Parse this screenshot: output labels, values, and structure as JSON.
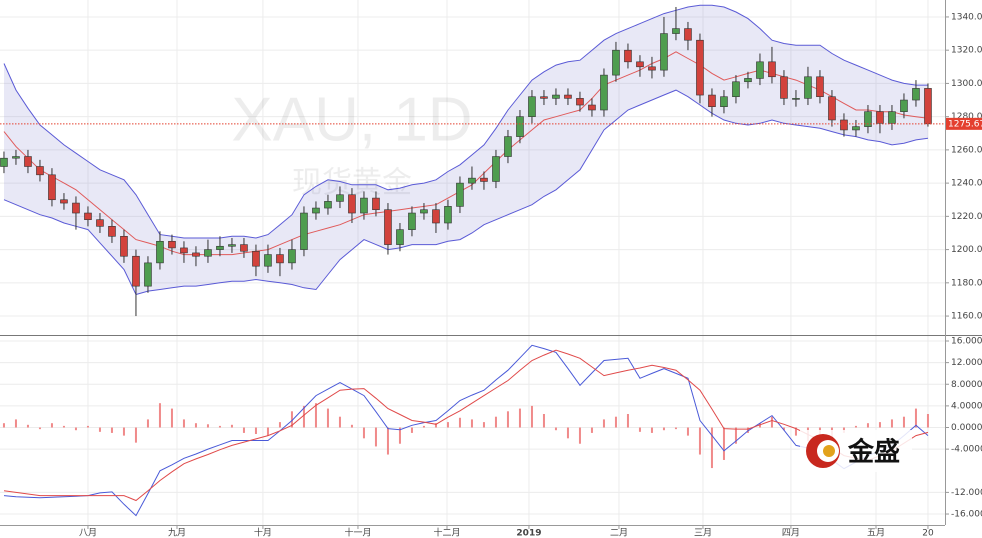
{
  "watermark": {
    "symbol": "XAU, 1D",
    "name": "现货黄金"
  },
  "logo": "金盛",
  "chart_data": [
    {
      "type": "candlestick",
      "xlim": [
        -0.33,
        78.42
      ],
      "ylim": [
        1148.6,
        1350.2
      ],
      "yticks": [
        {
          "value": 1160,
          "label": "1160.0"
        },
        {
          "value": 1180,
          "label": "1180.0"
        },
        {
          "value": 1200,
          "label": "1200.0"
        },
        {
          "value": 1220,
          "label": "1220.0"
        },
        {
          "value": 1240,
          "label": "1240.0"
        },
        {
          "value": 1260,
          "label": "1260.0"
        },
        {
          "value": 1280,
          "label": "1280.0"
        },
        {
          "value": 1300,
          "label": "1300.0"
        },
        {
          "value": 1320,
          "label": "1320.0"
        },
        {
          "value": 1340,
          "label": "1340.0"
        }
      ],
      "grid": true,
      "up_color": "#4f9d4f",
      "down_color": "#d2423c",
      "open": [
        1250,
        1255,
        1256,
        1250,
        1245,
        1230,
        1228,
        1222,
        1218,
        1214,
        1208,
        1196,
        1178,
        1192,
        1205,
        1201,
        1198,
        1196,
        1200,
        1202,
        1203,
        1199,
        1190,
        1197,
        1192,
        1200,
        1222,
        1225,
        1229,
        1233,
        1222,
        1231,
        1224,
        1203,
        1212,
        1222,
        1224,
        1216,
        1226,
        1240,
        1243,
        1241,
        1256,
        1268,
        1280,
        1292,
        1291,
        1293,
        1291,
        1287,
        1284,
        1305,
        1320,
        1313,
        1310,
        1308,
        1330,
        1333,
        1326,
        1293,
        1286,
        1292,
        1301,
        1303,
        1313,
        1304,
        1291,
        1291,
        1304,
        1292,
        1278,
        1272,
        1274,
        1283,
        1276,
        1283,
        1290,
        1297
      ],
      "high": [
        1259,
        1260,
        1260,
        1254,
        1249,
        1234,
        1232,
        1226,
        1222,
        1218,
        1212,
        1200,
        1196,
        1211,
        1209,
        1205,
        1202,
        1206,
        1208,
        1207,
        1207,
        1203,
        1203,
        1201,
        1206,
        1226,
        1229,
        1233,
        1238,
        1237,
        1235,
        1235,
        1228,
        1216,
        1226,
        1228,
        1228,
        1230,
        1244,
        1250,
        1247,
        1260,
        1272,
        1284,
        1296,
        1296,
        1297,
        1297,
        1295,
        1291,
        1309,
        1325,
        1324,
        1317,
        1316,
        1340,
        1346,
        1337,
        1330,
        1297,
        1296,
        1305,
        1307,
        1318,
        1322,
        1308,
        1296,
        1310,
        1308,
        1296,
        1282,
        1278,
        1287,
        1287,
        1287,
        1294,
        1302,
        1300
      ],
      "low": [
        1246,
        1251,
        1246,
        1241,
        1226,
        1224,
        1212,
        1214,
        1210,
        1204,
        1192,
        1160,
        1174,
        1188,
        1197,
        1192,
        1190,
        1192,
        1196,
        1198,
        1195,
        1184,
        1186,
        1184,
        1188,
        1196,
        1218,
        1221,
        1225,
        1216,
        1218,
        1220,
        1197,
        1199,
        1208,
        1218,
        1210,
        1212,
        1222,
        1236,
        1236,
        1237,
        1252,
        1264,
        1276,
        1287,
        1287,
        1287,
        1283,
        1280,
        1280,
        1301,
        1309,
        1304,
        1303,
        1304,
        1326,
        1320,
        1288,
        1280,
        1282,
        1288,
        1297,
        1299,
        1300,
        1287,
        1286,
        1287,
        1288,
        1274,
        1268,
        1268,
        1270,
        1270,
        1272,
        1279,
        1286,
        1274
      ],
      "close": [
        1255,
        1256,
        1250,
        1245,
        1230,
        1228,
        1222,
        1218,
        1214,
        1208,
        1196,
        1178,
        1192,
        1205,
        1201,
        1198,
        1196,
        1200,
        1202,
        1203,
        1199,
        1190,
        1197,
        1192,
        1200,
        1222,
        1225,
        1229,
        1233,
        1222,
        1231,
        1224,
        1203,
        1212,
        1222,
        1224,
        1216,
        1226,
        1240,
        1243,
        1241,
        1256,
        1268,
        1280,
        1292,
        1291,
        1293,
        1291,
        1287,
        1284,
        1305,
        1320,
        1313,
        1310,
        1308,
        1330,
        1333,
        1326,
        1293,
        1286,
        1292,
        1301,
        1303,
        1313,
        1304,
        1291,
        1291,
        1304,
        1292,
        1278,
        1272,
        1274,
        1283,
        1276,
        1283,
        1290,
        1297,
        1275.67
      ],
      "bands": {
        "color": "#5a5ad6",
        "middle_color": "#e05a5a",
        "fill": "rgba(110,110,200,0.16)",
        "upper": [
          1312,
          1296,
          1285,
          1275,
          1269,
          1263,
          1258,
          1253,
          1248,
          1245,
          1242,
          1233,
          1221,
          1209,
          1208,
          1207,
          1207,
          1207,
          1207,
          1208,
          1208,
          1207,
          1209,
          1215,
          1221,
          1233,
          1238,
          1242,
          1241,
          1239,
          1239,
          1239,
          1236,
          1237,
          1239,
          1240,
          1242,
          1247,
          1251,
          1257,
          1263,
          1273,
          1284,
          1293,
          1302,
          1307,
          1311,
          1313,
          1314,
          1320,
          1326,
          1330,
          1333,
          1336,
          1339,
          1342,
          1344,
          1346,
          1347,
          1347,
          1346,
          1343,
          1339,
          1333,
          1326,
          1324,
          1323,
          1323,
          1323,
          1318,
          1314,
          1311,
          1308,
          1305,
          1302,
          1300,
          1299,
          1299
        ],
        "middle": [
          1271,
          1262,
          1255,
          1248,
          1244,
          1240,
          1236,
          1230,
          1224,
          1218,
          1212,
          1206,
          1204,
          1202,
          1199,
          1197,
          1197,
          1197,
          1197,
          1197,
          1198,
          1199,
          1200,
          1203,
          1206,
          1209,
          1211,
          1213,
          1215,
          1218,
          1221,
          1222,
          1223,
          1224,
          1225,
          1226,
          1227,
          1231,
          1235,
          1239,
          1246,
          1253,
          1260,
          1266,
          1272,
          1278,
          1280,
          1282,
          1284,
          1291,
          1299,
          1302,
          1305,
          1308,
          1312,
          1315,
          1319,
          1315,
          1311,
          1306,
          1302,
          1304,
          1306,
          1308,
          1306,
          1304,
          1302,
          1299,
          1296,
          1292,
          1288,
          1284,
          1284,
          1283,
          1283,
          1281,
          1280,
          1279
        ],
        "lower": [
          1230,
          1227,
          1224,
          1221,
          1219,
          1216,
          1214,
          1212,
          1204,
          1196,
          1188,
          1173,
          1175,
          1176,
          1177,
          1178,
          1178,
          1179,
          1180,
          1181,
          1181,
          1182,
          1181,
          1180,
          1179,
          1177,
          1176,
          1185,
          1194,
          1200,
          1206,
          1203,
          1200,
          1201,
          1203,
          1203,
          1203,
          1205,
          1206,
          1210,
          1215,
          1218,
          1221,
          1224,
          1227,
          1232,
          1236,
          1242,
          1248,
          1260,
          1272,
          1278,
          1284,
          1287,
          1290,
          1293,
          1296,
          1292,
          1287,
          1282,
          1278,
          1276,
          1275,
          1276,
          1278,
          1276,
          1275,
          1274,
          1273,
          1271,
          1269,
          1268,
          1266,
          1265,
          1263,
          1264,
          1266,
          1267
        ]
      },
      "last_price": {
        "value": 1275.67,
        "color": "#e4402f"
      }
    },
    {
      "type": "macd",
      "xlim": [
        -0.33,
        78.42
      ],
      "ylim": [
        -18.03,
        16.74
      ],
      "yticks": [
        {
          "value": 16,
          "label": "16.0000"
        },
        {
          "value": 12,
          "label": "12.0000"
        },
        {
          "value": 8,
          "label": "8.0000"
        },
        {
          "value": 4,
          "label": "4.0000"
        },
        {
          "value": 0,
          "label": "0.0000"
        },
        {
          "value": -4,
          "label": "-4.0000"
        },
        {
          "value": -12,
          "label": "-12.0000"
        },
        {
          "value": -16,
          "label": "-16.0000"
        }
      ],
      "xticks": [
        {
          "value": 7,
          "label": "八月"
        },
        {
          "value": 14.42,
          "label": "九月"
        },
        {
          "value": 21.58,
          "label": "十月"
        },
        {
          "value": 29.5,
          "label": "十一月"
        },
        {
          "value": 36.92,
          "label": "十二月"
        },
        {
          "value": 43.75,
          "label": "2019"
        },
        {
          "value": 51.25,
          "label": "二月"
        },
        {
          "value": 58.25,
          "label": "三月"
        },
        {
          "value": 65.58,
          "label": "四月"
        },
        {
          "value": 72.67,
          "label": "五月"
        },
        {
          "value": 77,
          "label": "20"
        }
      ],
      "series": [
        {
          "color": "#4a5ad8",
          "values": [
            -12.6,
            -12.8,
            -12.9,
            -13.0,
            -12.9,
            -12.8,
            -12.7,
            -12.6,
            -12.1,
            -11.9,
            -14.2,
            -16.3,
            -12.2,
            -8.0,
            -6.9,
            -5.7,
            -4.9,
            -4.0,
            -3.2,
            -2.4,
            -2.4,
            -2.4,
            -2.4,
            -0.6,
            1.3,
            3.6,
            5.9,
            7.1,
            8.3,
            7.1,
            5.9,
            2.9,
            -0.2,
            -0.4,
            0.4,
            0.9,
            1.3,
            3.1,
            5.0,
            6.0,
            6.9,
            8.8,
            10.6,
            12.9,
            15.2,
            14.6,
            13.9,
            10.9,
            7.8,
            10.1,
            12.4,
            12.6,
            12.8,
            9.1,
            10.0,
            10.9,
            10.0,
            9.1,
            1.3,
            -1.5,
            -4.3,
            -2.5,
            -0.6,
            0.8,
            2.2,
            -0.5,
            -3.3,
            -3.8,
            -4.3,
            -6.0,
            -7.6,
            -6.4,
            -5.2,
            -4.3,
            -3.3,
            -1.5,
            0.4,
            -1.5
          ]
        },
        {
          "color": "#e04a4a",
          "values": [
            -11.7,
            -12.0,
            -12.3,
            -12.6,
            -12.6,
            -12.6,
            -12.6,
            -12.6,
            -12.6,
            -12.6,
            -12.6,
            -13.5,
            -11.7,
            -9.8,
            -8.2,
            -6.7,
            -5.8,
            -5.0,
            -4.1,
            -3.3,
            -2.7,
            -2.1,
            -1.5,
            -0.6,
            0.4,
            2.3,
            4.1,
            5.5,
            6.9,
            7.1,
            7.2,
            5.4,
            3.5,
            2.4,
            1.3,
            1.0,
            0.6,
            1.9,
            3.1,
            4.5,
            5.9,
            7.3,
            8.7,
            10.6,
            12.4,
            13.4,
            14.3,
            13.6,
            12.8,
            11.2,
            9.6,
            10.1,
            10.6,
            11.0,
            11.5,
            11.1,
            10.6,
            8.8,
            6.9,
            3.4,
            -0.2,
            -0.3,
            -0.3,
            0.5,
            1.3,
            0.6,
            -0.2,
            -1.3,
            -2.4,
            -3.8,
            -5.2,
            -5.7,
            -6.1,
            -5.2,
            -4.3,
            -2.9,
            -1.5,
            -0.9
          ]
        }
      ],
      "histogram": {
        "color": "#f08a8a",
        "values": [
          0.8,
          1.5,
          0.5,
          -0.3,
          0.8,
          0.3,
          -0.5,
          0.3,
          -0.8,
          -1.0,
          -1.5,
          -2.8,
          1.5,
          4.5,
          3.5,
          1.5,
          0.8,
          0.6,
          0.3,
          0.5,
          -1.0,
          -1.2,
          -1.5,
          1.0,
          3.0,
          4.0,
          4.5,
          3.5,
          2.0,
          0.5,
          -2.0,
          -3.5,
          -5.0,
          -3.0,
          -1.0,
          0.3,
          0.8,
          1.0,
          1.8,
          1.5,
          1.0,
          2.0,
          3.0,
          3.5,
          4.0,
          2.5,
          -0.5,
          -2.0,
          -3.0,
          -1.0,
          1.5,
          2.0,
          2.5,
          -0.8,
          -1.0,
          -0.5,
          -0.3,
          -1.5,
          -5.0,
          -7.5,
          -6.0,
          -3.0,
          -1.0,
          0.8,
          2.0,
          -0.5,
          -1.5,
          -2.5,
          -3.0,
          -2.0,
          -1.0,
          0.3,
          0.8,
          1.0,
          1.5,
          2.0,
          3.5,
          2.5
        ]
      },
      "grid": true
    }
  ]
}
